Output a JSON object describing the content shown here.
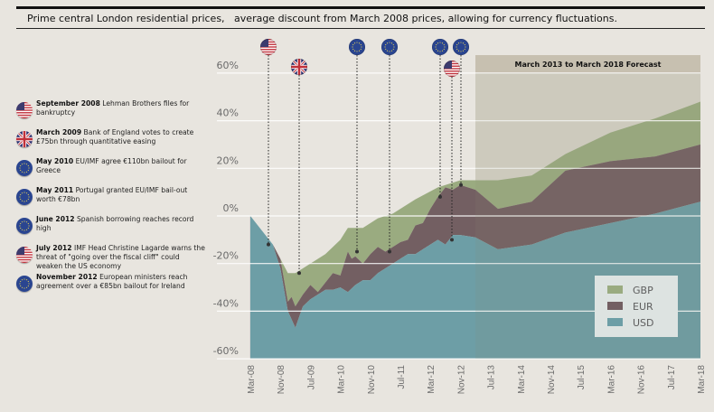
{
  "header": {
    "title": "Prime central London residential prices,   average discount from March 2008 prices, allowing for currency fluctuations."
  },
  "events": [
    {
      "flag": "us-flag-icon",
      "date": "September 2008",
      "text": " Lehman Brothers files for bankruptcy",
      "month": 6
    },
    {
      "flag": "uk-flag-icon",
      "date": "March 2009",
      "text": " Bank of England votes to create £75bn through quantitative easing",
      "month": 12
    },
    {
      "flag": "eu-flag-icon",
      "date": "May 2010",
      "text": " EU/IMF agree €110bn bailout for Greece",
      "month": 26
    },
    {
      "flag": "eu-flag-icon",
      "date": "May 2011",
      "text": " Portugal granted EU/IMF bail-out worth €78bn",
      "month": 38
    },
    {
      "flag": "eu-flag-icon",
      "date": "June 2012",
      "text": " Spanish borrowing reaches record high",
      "month": 51
    },
    {
      "flag": "us-flag-icon",
      "date": "July 2012",
      "text": " IMF Head Christine Lagarde warns the threat of \"going over the fiscal cliff\" could weaken the US economy",
      "month": 53
    },
    {
      "flag": "eu-flag-icon",
      "date": "November 2012",
      "text": " European ministers reach agreement over a €85bn bailout for Ireland",
      "month": 56
    }
  ],
  "colors": {
    "GBP": "#9aab80",
    "EUR": "#735f62",
    "USD": "#6d9ea6",
    "forecast_band": "#c7c0b0",
    "forecast_bg": "#d6d3c8"
  },
  "chart_data": {
    "type": "area",
    "title": "Prime central London residential prices, average discount from March 2008 prices, allowing for currency fluctuations.",
    "xlabel": "",
    "ylabel": "",
    "ylim": [
      -60,
      60
    ],
    "yticks": [
      "60%",
      "40%",
      "20%",
      "0%",
      "-20%",
      "-40%",
      "-60%"
    ],
    "ytick_values": [
      60,
      40,
      20,
      0,
      -20,
      -40,
      -60
    ],
    "xticks": [
      "Mar-08",
      "Nov-08",
      "Jul-09",
      "Mar-10",
      "Nov-10",
      "Jul-11",
      "Mar-12",
      "Nov-12",
      "Jul-13",
      "Mar-14",
      "Nov-14",
      "Jul-15",
      "Mar-16",
      "Nov-16",
      "Jul-17",
      "Mar-18"
    ],
    "x_range_months": [
      0,
      120
    ],
    "forecast": {
      "label": "March 2013 to March 2018 Forecast",
      "start_month": 60,
      "end_month": 120
    },
    "legend": [
      "GBP",
      "EUR",
      "USD"
    ],
    "legend_position": "bottom-right",
    "grid": true,
    "series": [
      {
        "name": "USD",
        "points": [
          [
            0,
            0
          ],
          [
            6,
            -12
          ],
          [
            8,
            -22
          ],
          [
            10,
            -40
          ],
          [
            12,
            -47
          ],
          [
            14,
            -38
          ],
          [
            16,
            -35
          ],
          [
            18,
            -33
          ],
          [
            20,
            -31
          ],
          [
            22,
            -31
          ],
          [
            24,
            -30
          ],
          [
            26,
            -32
          ],
          [
            28,
            -29
          ],
          [
            30,
            -27
          ],
          [
            32,
            -27
          ],
          [
            34,
            -24
          ],
          [
            36,
            -22
          ],
          [
            38,
            -20
          ],
          [
            40,
            -18
          ],
          [
            42,
            -16
          ],
          [
            44,
            -16
          ],
          [
            46,
            -14
          ],
          [
            48,
            -12
          ],
          [
            50,
            -10
          ],
          [
            52,
            -12
          ],
          [
            54,
            -8
          ],
          [
            56,
            -8
          ],
          [
            60,
            -9
          ],
          [
            66,
            -14
          ],
          [
            75,
            -12
          ],
          [
            84,
            -7
          ],
          [
            96,
            -3
          ],
          [
            108,
            1
          ],
          [
            120,
            6
          ]
        ]
      },
      {
        "name": "EUR",
        "points": [
          [
            0,
            0
          ],
          [
            6,
            -12
          ],
          [
            8,
            -18
          ],
          [
            10,
            -36
          ],
          [
            11,
            -34
          ],
          [
            12,
            -38
          ],
          [
            14,
            -33
          ],
          [
            16,
            -29
          ],
          [
            18,
            -32
          ],
          [
            20,
            -28
          ],
          [
            22,
            -24
          ],
          [
            24,
            -25
          ],
          [
            26,
            -15
          ],
          [
            27,
            -18
          ],
          [
            28,
            -17
          ],
          [
            30,
            -20
          ],
          [
            32,
            -16
          ],
          [
            34,
            -13
          ],
          [
            36,
            -15
          ],
          [
            38,
            -13
          ],
          [
            40,
            -11
          ],
          [
            42,
            -10
          ],
          [
            44,
            -4
          ],
          [
            46,
            -3
          ],
          [
            48,
            3
          ],
          [
            50,
            8
          ],
          [
            52,
            12
          ],
          [
            54,
            11
          ],
          [
            56,
            13
          ],
          [
            60,
            11
          ],
          [
            66,
            3
          ],
          [
            75,
            6
          ],
          [
            84,
            19
          ],
          [
            96,
            23
          ],
          [
            108,
            25
          ],
          [
            120,
            30
          ]
        ]
      },
      {
        "name": "GBP",
        "points": [
          [
            0,
            0
          ],
          [
            6,
            -12
          ],
          [
            8,
            -18
          ],
          [
            10,
            -24
          ],
          [
            12,
            -24
          ],
          [
            16,
            -20
          ],
          [
            20,
            -16
          ],
          [
            24,
            -10
          ],
          [
            26,
            -5
          ],
          [
            30,
            -5
          ],
          [
            34,
            -1
          ],
          [
            38,
            1
          ],
          [
            44,
            7
          ],
          [
            50,
            12
          ],
          [
            54,
            14
          ],
          [
            56,
            15
          ],
          [
            60,
            15
          ],
          [
            66,
            15
          ],
          [
            75,
            17
          ],
          [
            84,
            26
          ],
          [
            96,
            35
          ],
          [
            108,
            41
          ],
          [
            120,
            48
          ]
        ]
      }
    ],
    "event_markers": [
      {
        "month": 6,
        "value": -12
      },
      {
        "month": 12,
        "value": -24
      },
      {
        "month": 26,
        "value": -15
      },
      {
        "month": 38,
        "value": -15
      },
      {
        "month": 51,
        "value": 8
      },
      {
        "month": 53,
        "value": -10
      },
      {
        "month": 56,
        "value": 13
      }
    ]
  }
}
